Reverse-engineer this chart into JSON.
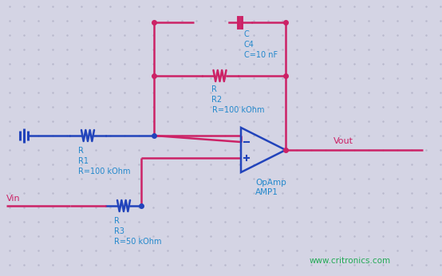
{
  "background_color": "#d4d4e4",
  "dot_color": "#b8b8cc",
  "wire_blue": "#2244bb",
  "wire_pink": "#cc2266",
  "text_blue": "#2288cc",
  "text_pink": "#cc2266",
  "text_green": "#22aa55",
  "opamp_color": "#2244bb",
  "C_label": "C\nC4\nC=10 nF",
  "R2_label": "R\nR2\nR=100 kOhm",
  "R1_label": "R\nR1\nR=100 kOhm",
  "R3_label": "R\nR3\nR=50 kOhm",
  "Vout_label": "Vout",
  "Vin_label": "Vin",
  "opamp_label": "OpAmp\nAMP1",
  "website": "www.critronics.com"
}
